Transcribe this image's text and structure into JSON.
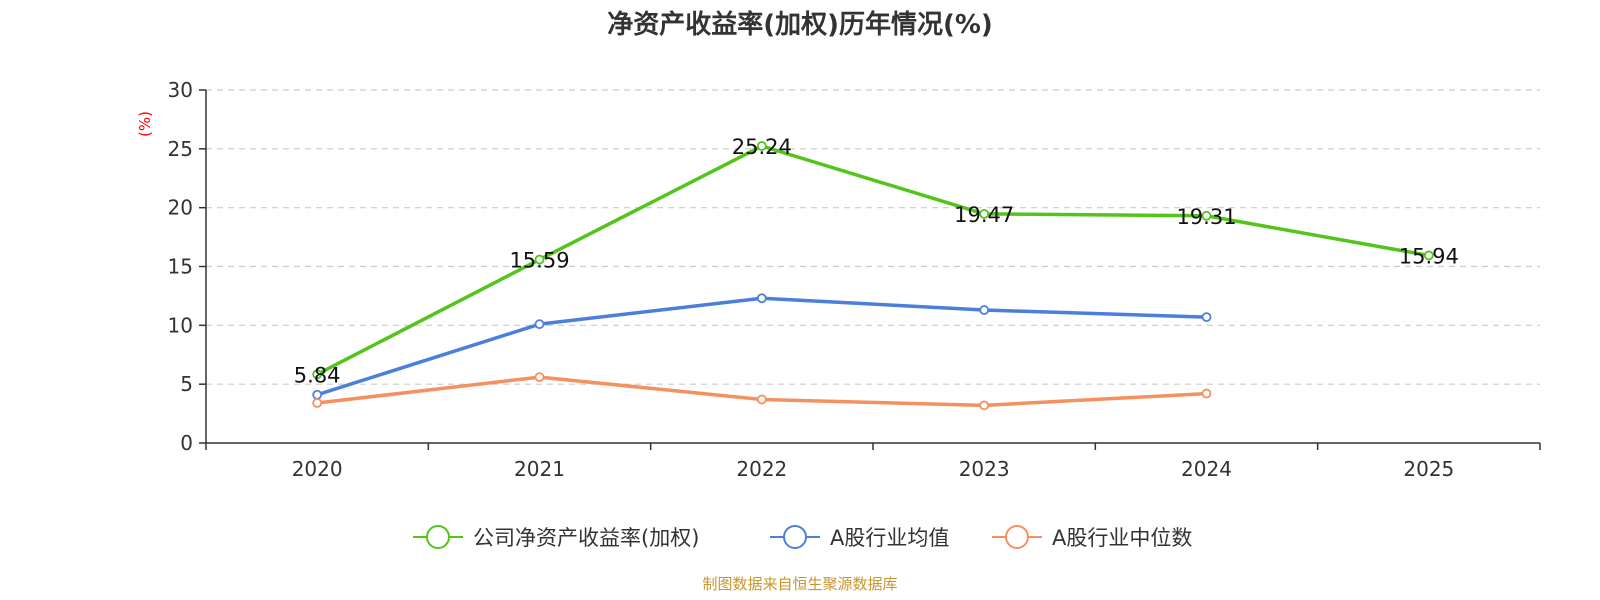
{
  "chart_data": {
    "type": "line",
    "title": "净资产收益率(加权)历年情况(%)",
    "ylabel": "(%)",
    "xlabel": "",
    "categories": [
      "2020",
      "2021",
      "2022",
      "2023",
      "2024",
      "2025"
    ],
    "ylim": [
      0,
      30
    ],
    "yticks": [
      0,
      5,
      10,
      15,
      20,
      25,
      30
    ],
    "grid": true,
    "legend_position": "bottom",
    "series": [
      {
        "name": "公司净资产收益率(加权)",
        "color": "#52c41a",
        "values": [
          5.84,
          15.59,
          25.24,
          19.47,
          19.31,
          15.94
        ],
        "data_labels": [
          "5.84",
          "15.59",
          "25.24",
          "19.47",
          "19.31",
          "15.94"
        ]
      },
      {
        "name": "A股行业均值",
        "color": "#4a7fdc",
        "values": [
          4.1,
          10.1,
          12.3,
          11.3,
          10.7,
          null
        ]
      },
      {
        "name": "A股行业中位数",
        "color": "#f4915e",
        "values": [
          3.4,
          5.6,
          3.7,
          3.2,
          4.2,
          null
        ]
      }
    ],
    "source": "制图数据来自恒生聚源数据库"
  }
}
